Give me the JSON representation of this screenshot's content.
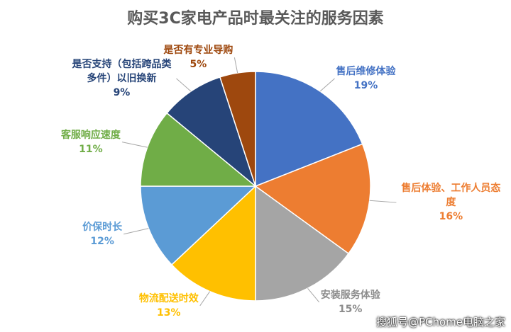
{
  "chart_data": {
    "type": "pie",
    "title": "购买3C家电产品时最关注的服务因素",
    "categories": [
      "售后维修体验",
      "售后体验、工作人员态度",
      "安装服务体验",
      "物流配送时效",
      "价保时长",
      "客服响应速度",
      "是否支持（包括跨品类多件）以旧换新",
      "是否有专业导购"
    ],
    "values": [
      19,
      16,
      15,
      13,
      12,
      11,
      9,
      5
    ],
    "value_labels": [
      "19%",
      "16%",
      "15%",
      "13%",
      "12%",
      "11%",
      "9%",
      "5%"
    ],
    "colors": [
      "#4472c4",
      "#ed7d31",
      "#a5a5a5",
      "#ffc000",
      "#5b9bd5",
      "#70ad47",
      "#264478",
      "#9e480e"
    ]
  },
  "watermark": "搜狐号@PChome电脑之家"
}
